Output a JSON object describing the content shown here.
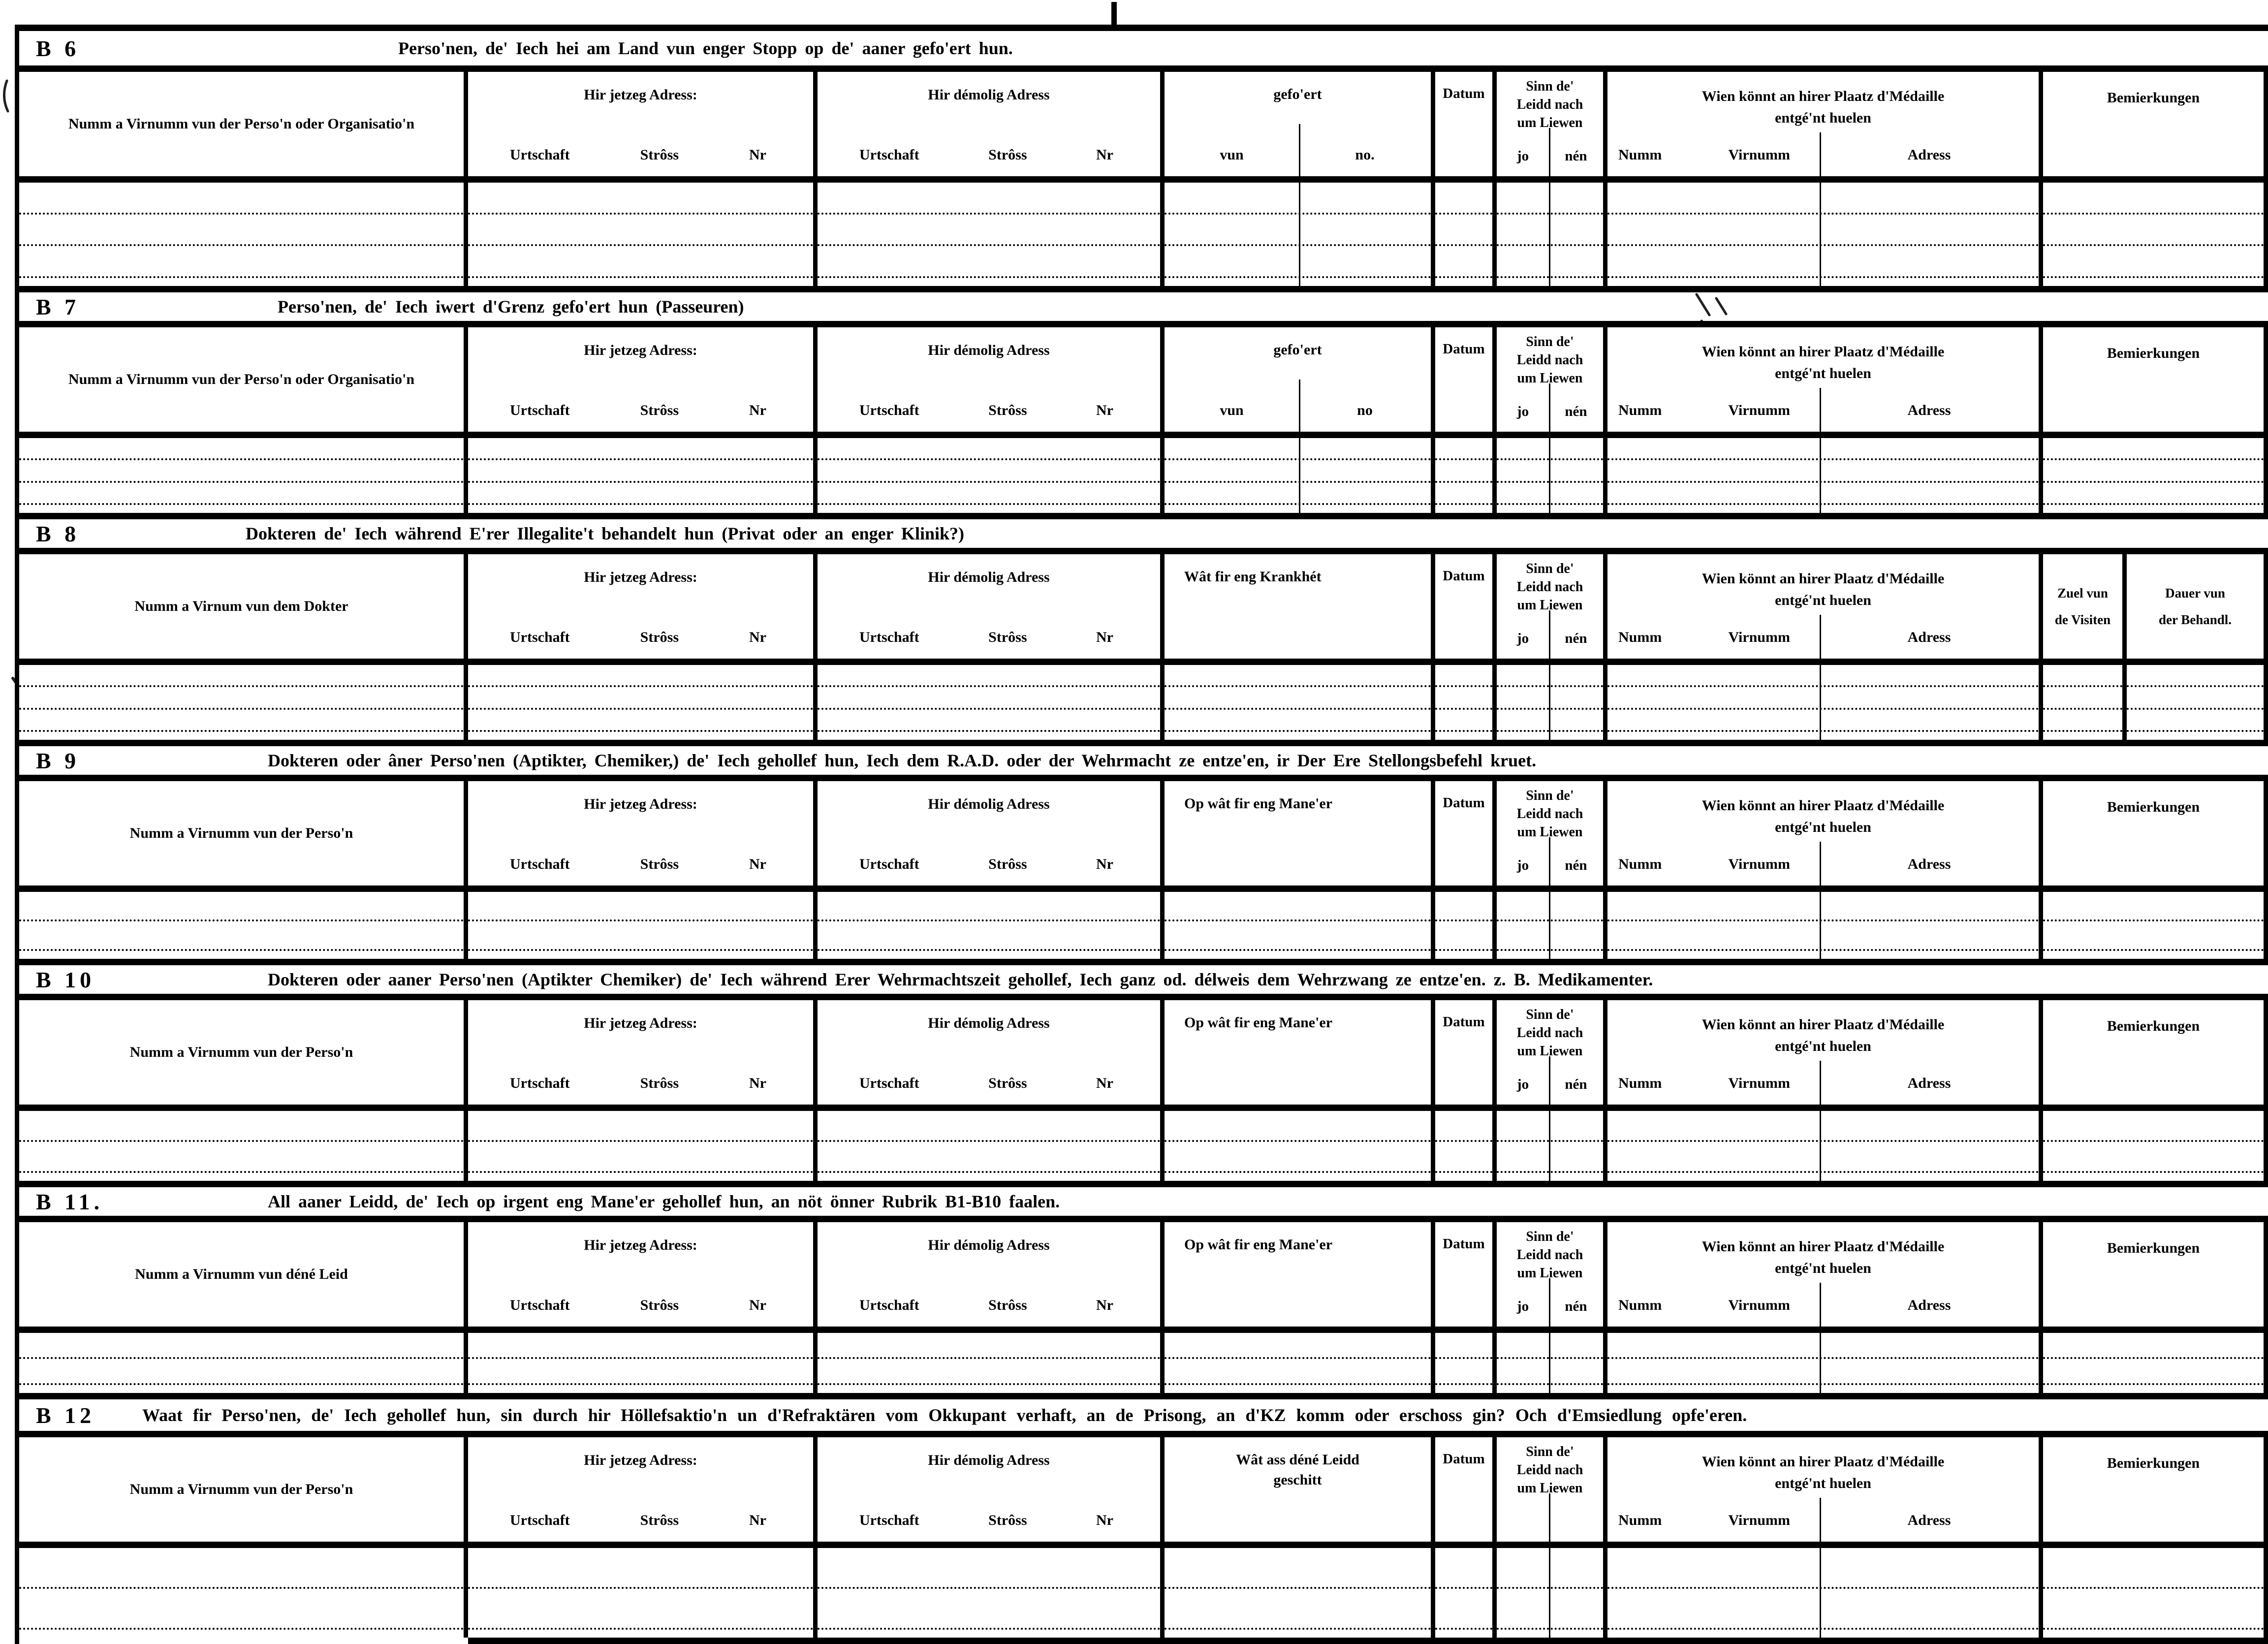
{
  "labels": {
    "jetzeg": "Hir jetzeg Adress:",
    "demolig": "Hir démolig Adress",
    "urtschaft": "Urtschaft",
    "stross": "Strôss",
    "nr": "Nr",
    "datum": "Datum",
    "sinn": [
      "Sinn  de'",
      "Leidd  nach",
      "um  Liewen"
    ],
    "jo": "jo",
    "nen": "nén",
    "wien": [
      "Wien  könnt  an  hirer  Plaatz  d'Médaille",
      "entgé'nt  huelen"
    ],
    "numm": "Numm",
    "virnumm": "Virnumm",
    "adress": "Adress",
    "bemierkungen": "Bemierkungen",
    "zuel": [
      "Zuel vun",
      "de Visiten"
    ],
    "dauer": [
      "Dauer vun",
      "der Behandl."
    ]
  },
  "sections": [
    {
      "code": "B 6",
      "title": "Perso'nen, de' Iech hei am Land vun enger Stopp  op de' aaner gefo'ert hun.",
      "name_col": "Numm a Virnumm vun der Perso'n oder Organisatio'n",
      "mid_label": [
        "gefo'ert"
      ],
      "mid_subs": [
        "vun",
        "no."
      ],
      "jo_nen": true,
      "right": "bemierkungen",
      "rows": 3
    },
    {
      "code": "B 7",
      "title": "Perso'nen, de' Iech iwert d'Grenz gefo'ert hun (Passeuren)",
      "name_col": "Numm a Virnumm vun der Perso'n oder Organisatio'n",
      "mid_label": [
        "gefo'ert"
      ],
      "mid_subs": [
        "vun",
        "no"
      ],
      "jo_nen": true,
      "right": "bemierkungen",
      "rows": 3
    },
    {
      "code": "B 8",
      "title": "Dokteren de' Iech während E'rer Illegalite't behandelt hun (Privat oder an enger Klinik?)",
      "name_col": "Numm a Virnum vun dem Dokter",
      "mid_label": [
        "Wât fir eng Krankhét"
      ],
      "mid_subs": null,
      "jo_nen": true,
      "right": "visits",
      "rows": 3
    },
    {
      "code": "B 9",
      "title": "Dokteren oder âner Perso'nen (Aptikter, Chemiker,) de' Iech gehollef hun, Iech dem R.A.D. oder der Wehrmacht ze entze'en, ir Der Ere Stellongsbefehl kruet.",
      "name_col": "Numm a Virnumm vun der Perso'n",
      "mid_label": [
        "Op wât fir eng Mane'er"
      ],
      "mid_subs": null,
      "jo_nen": true,
      "right": "bemierkungen",
      "rows": 2
    },
    {
      "code": "B 10",
      "title": "Dokteren oder aaner Perso'nen (Aptikter Chemiker) de' Iech während Erer Wehrmachtszeit gehollef, Iech ganz od. délweis dem Wehrzwang ze entze'en. z. B. Medikamenter.",
      "name_col": "Numm a Virnumm vun der Perso'n",
      "mid_label": [
        "Op wât fir eng Mane'er"
      ],
      "mid_subs": null,
      "jo_nen": true,
      "right": "bemierkungen",
      "rows": 2
    },
    {
      "code": "B 11.",
      "title": "All aaner Leidd, de' Iech op irgent eng Mane'er  gehollef hun, an nöt önner Rubrik B1-B10 faalen.",
      "name_col": "Numm a Virnumm vun déné Leid",
      "mid_label": [
        "Op wât fir eng Mane'er"
      ],
      "mid_subs": null,
      "jo_nen": true,
      "right": "bemierkungen",
      "rows": 2
    },
    {
      "code": "B 12",
      "title": "Waat fir Perso'nen, de' Iech gehollef hun, sin durch hir Höllefsaktio'n un d'Refraktären vom Okkupant verhaft, an de Prisong, an d'KZ komm oder erschoss gin? Och d'Emsiedlung opfe'eren.",
      "name_col": "Numm a Virnumm vun der Perso'n",
      "mid_label": [
        "Wât  ass  déné  Leidd",
        "geschitt"
      ],
      "mid_subs": null,
      "jo_nen": false,
      "right": "bemierkungen",
      "rows": 2
    }
  ],
  "artifacts": {
    "top_fold_mark": true,
    "illegible_handwriting_regions": 4
  }
}
